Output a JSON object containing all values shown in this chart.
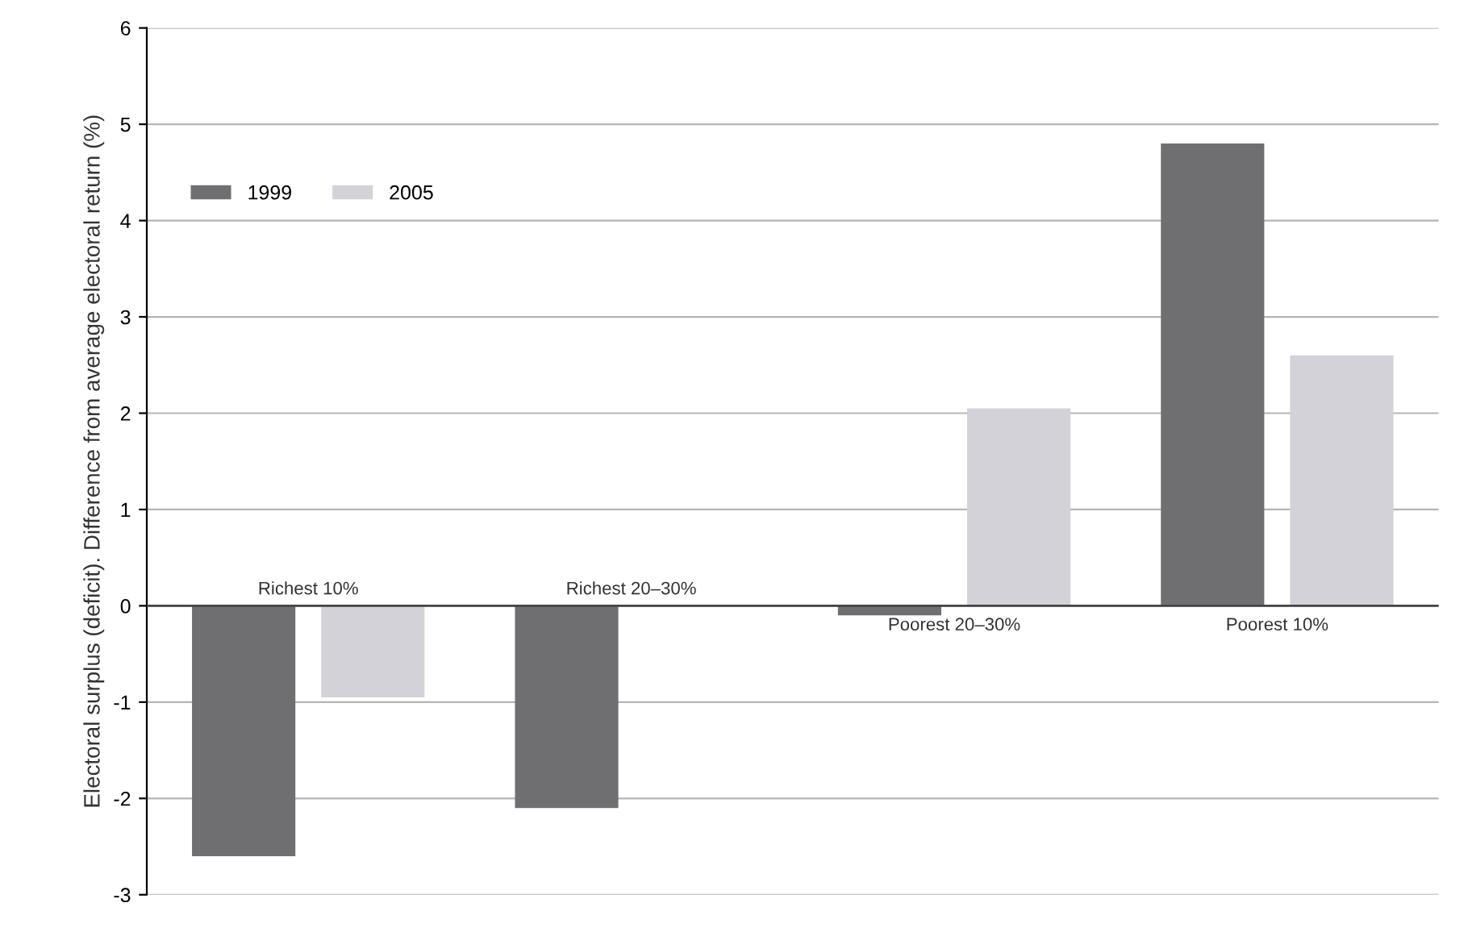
{
  "chart_data": {
    "type": "bar",
    "ylabel": "Electoral surplus (deficit). Difference from average electoral return (%)",
    "categories": [
      "Richest 10%",
      "Richest 20–30%",
      "Poorest 20–30%",
      "Poorest 10%"
    ],
    "series": [
      {
        "name": "1999",
        "color": "#6f6f72",
        "values": [
          -2.6,
          -2.1,
          -0.1,
          4.8
        ]
      },
      {
        "name": "2005",
        "color": "#d3d2d8",
        "values": [
          -0.95,
          0.0,
          2.05,
          2.6
        ]
      }
    ],
    "ylim": [
      -3,
      6
    ],
    "yticks": [
      -3,
      -2,
      -1,
      0,
      1,
      2,
      3,
      4,
      5,
      6
    ],
    "grid": "y",
    "legend": "top left"
  }
}
